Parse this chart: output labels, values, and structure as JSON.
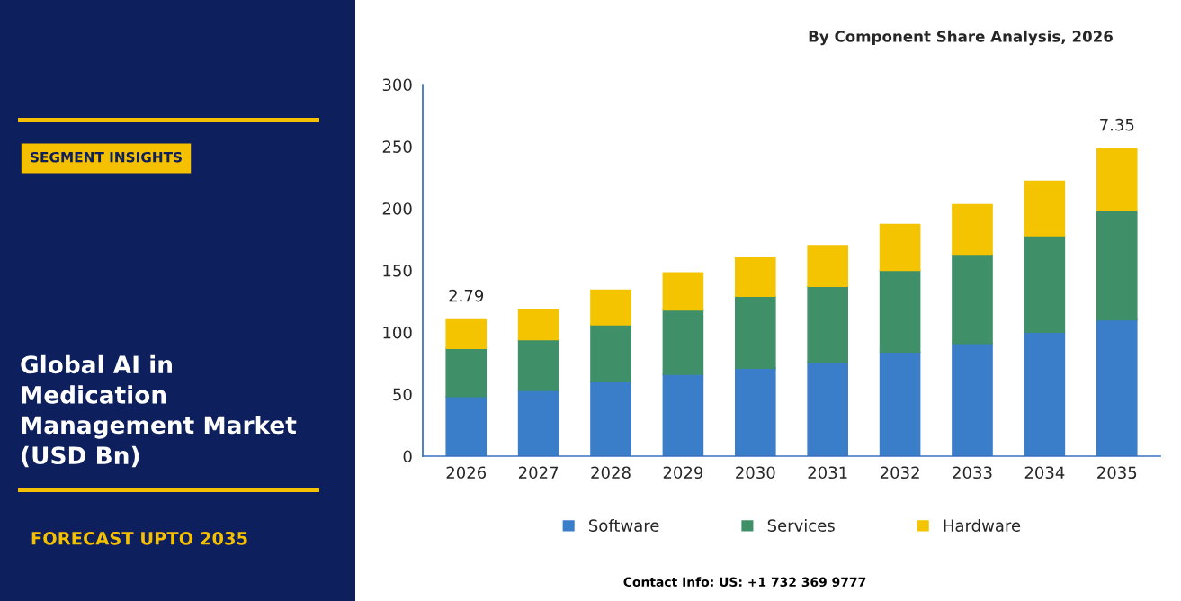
{
  "chart_data": {
    "type": "bar",
    "title": "Global AI in\nMedication\nManagement Market\n(USD Bn)",
    "subtitle": "By Component Share Analysis, 2026",
    "annotations": [
      "SEGMENT INSIGHTS",
      "FORECAST UPTO 2035",
      "Contact Info: US: +1 732 369 9777",
      {
        "text": "2.79",
        "x": "2026",
        "y": 110
      },
      {
        "text": "7.35",
        "x": "2035",
        "y": 248
      }
    ],
    "categories": [
      "2026",
      "2027",
      "2028",
      "2029",
      "2030",
      "2031",
      "2032",
      "2033",
      "2034",
      "2035"
    ],
    "series": [
      {
        "name": "Software",
        "color": "#3a7dc9",
        "values": [
          48,
          53,
          60,
          66,
          71,
          76,
          84,
          91,
          100,
          110
        ]
      },
      {
        "name": "Services",
        "color": "#3f9068",
        "values": [
          39,
          41,
          46,
          52,
          58,
          61,
          66,
          72,
          78,
          88
        ]
      },
      {
        "name": "Hardware",
        "color": "#f5c400",
        "values": [
          23,
          24,
          28,
          30,
          31,
          33,
          37,
          40,
          44,
          50
        ]
      }
    ],
    "stacked": true,
    "ylim": [
      0,
      300
    ],
    "yticks": [
      0,
      50,
      100,
      150,
      200,
      250,
      300
    ],
    "grid": false,
    "legend": "bottom"
  }
}
